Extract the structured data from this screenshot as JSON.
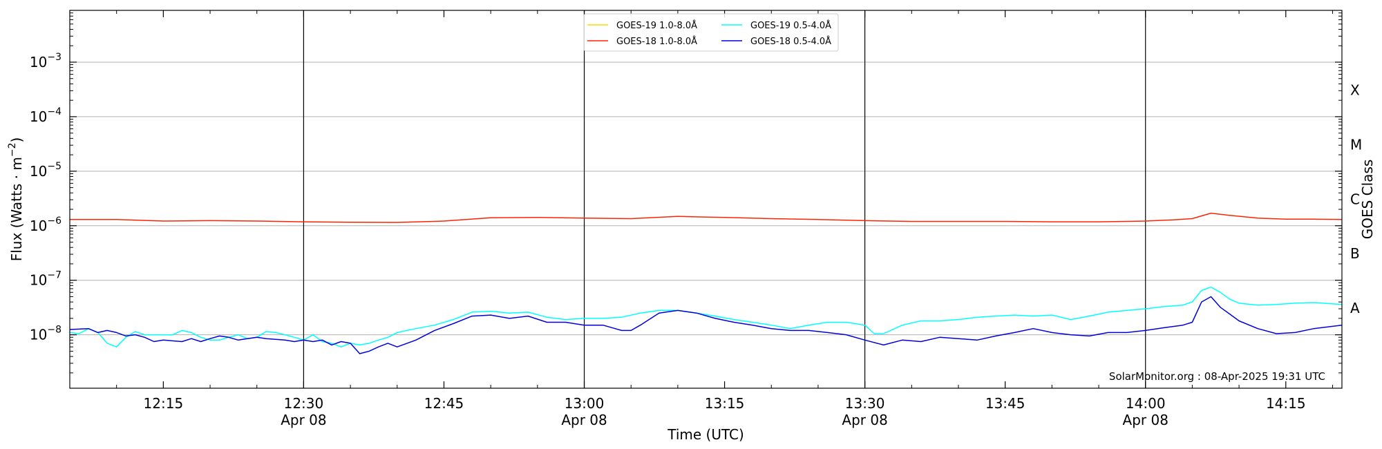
{
  "chart_data": {
    "type": "line",
    "ylabel": "Flux (Watts · m⁻²)",
    "xlabel": "Time (UTC)",
    "right_label": "GOES Class",
    "xlim": [
      "12:05",
      "14:21"
    ],
    "ylim_log10": [
      -8.98,
      -2.05
    ],
    "yscale": "log",
    "x_ticks": [
      {
        "time": "12:15",
        "label": "12:15",
        "date": ""
      },
      {
        "time": "12:30",
        "label": "12:30",
        "date": "Apr 08"
      },
      {
        "time": "12:45",
        "label": "12:45",
        "date": ""
      },
      {
        "time": "13:00",
        "label": "13:00",
        "date": "Apr 08"
      },
      {
        "time": "13:15",
        "label": "13:15",
        "date": ""
      },
      {
        "time": "13:30",
        "label": "13:30",
        "date": "Apr 08"
      },
      {
        "time": "13:45",
        "label": "13:45",
        "date": ""
      },
      {
        "time": "14:00",
        "label": "14:00",
        "date": "Apr 08"
      },
      {
        "time": "14:15",
        "label": "14:15",
        "date": ""
      }
    ],
    "y_ticks": [
      {
        "exp": -8,
        "base": "10",
        "power": "−8"
      },
      {
        "exp": -7,
        "base": "10",
        "power": "−7"
      },
      {
        "exp": -6,
        "base": "10",
        "power": "−6"
      },
      {
        "exp": -5,
        "base": "10",
        "power": "−5"
      },
      {
        "exp": -4,
        "base": "10",
        "power": "−4"
      },
      {
        "exp": -3,
        "base": "10",
        "power": "−3"
      }
    ],
    "date_lines": [
      "12:30",
      "13:00",
      "13:30",
      "14:00"
    ],
    "goes_classes": [
      {
        "label": "A",
        "exp": -7.5
      },
      {
        "label": "B",
        "exp": -6.5
      },
      {
        "label": "C",
        "exp": -5.5
      },
      {
        "label": "M",
        "exp": -4.5
      },
      {
        "label": "X",
        "exp": -3.5
      }
    ],
    "grid": "horizontal",
    "legend_position": "top-center",
    "credit": "SolarMonitor.org : 08-Apr-2025 19:31 UTC",
    "series": [
      {
        "name": "GOES-19 1.0-8.0Å",
        "color": "#ffd700",
        "points": []
      },
      {
        "name": "GOES-18 1.0-8.0Å",
        "color": "#ff2200",
        "points": [
          [
            "12:05",
            1.3e-06
          ],
          [
            "12:10",
            1.3e-06
          ],
          [
            "12:15",
            1.22e-06
          ],
          [
            "12:20",
            1.24e-06
          ],
          [
            "12:25",
            1.22e-06
          ],
          [
            "12:30",
            1.18e-06
          ],
          [
            "12:35",
            1.16e-06
          ],
          [
            "12:40",
            1.15e-06
          ],
          [
            "12:45",
            1.22e-06
          ],
          [
            "12:50",
            1.4e-06
          ],
          [
            "12:55",
            1.42e-06
          ],
          [
            "13:00",
            1.38e-06
          ],
          [
            "13:05",
            1.35e-06
          ],
          [
            "13:10",
            1.48e-06
          ],
          [
            "13:15",
            1.42e-06
          ],
          [
            "13:20",
            1.35e-06
          ],
          [
            "13:25",
            1.3e-06
          ],
          [
            "13:30",
            1.24e-06
          ],
          [
            "13:35",
            1.2e-06
          ],
          [
            "13:40",
            1.2e-06
          ],
          [
            "13:45",
            1.2e-06
          ],
          [
            "13:50",
            1.18e-06
          ],
          [
            "13:55",
            1.18e-06
          ],
          [
            "14:00",
            1.22e-06
          ],
          [
            "14:03",
            1.28e-06
          ],
          [
            "14:05",
            1.35e-06
          ],
          [
            "14:07",
            1.7e-06
          ],
          [
            "14:09",
            1.55e-06
          ],
          [
            "14:12",
            1.38e-06
          ],
          [
            "14:15",
            1.32e-06
          ],
          [
            "14:18",
            1.32e-06
          ],
          [
            "14:21",
            1.3e-06
          ]
        ]
      },
      {
        "name": "GOES-19 0.5-4.0Å",
        "color": "#00ffff",
        "points": [
          [
            "12:05",
            1.1e-08
          ],
          [
            "12:06",
            1.05e-08
          ],
          [
            "12:07",
            1.3e-08
          ],
          [
            "12:08",
            1.1e-08
          ],
          [
            "12:09",
            7e-09
          ],
          [
            "12:10",
            6e-09
          ],
          [
            "12:11",
            9e-09
          ],
          [
            "12:12",
            1.15e-08
          ],
          [
            "12:13",
            1e-08
          ],
          [
            "12:15",
            1e-08
          ],
          [
            "12:16",
            1e-08
          ],
          [
            "12:17",
            1.2e-08
          ],
          [
            "12:18",
            1.1e-08
          ],
          [
            "12:19",
            9e-09
          ],
          [
            "12:20",
            8e-09
          ],
          [
            "12:21",
            8e-09
          ],
          [
            "12:22",
            9e-09
          ],
          [
            "12:23",
            1e-08
          ],
          [
            "12:24",
            8.5e-09
          ],
          [
            "12:25",
            9e-09
          ],
          [
            "12:26",
            1.15e-08
          ],
          [
            "12:27",
            1.1e-08
          ],
          [
            "12:28",
            1e-08
          ],
          [
            "12:29",
            9e-09
          ],
          [
            "12:30",
            8e-09
          ],
          [
            "12:31",
            1e-08
          ],
          [
            "12:32",
            7.5e-09
          ],
          [
            "12:33",
            7e-09
          ],
          [
            "12:34",
            6e-09
          ],
          [
            "12:35",
            7e-09
          ],
          [
            "12:36",
            6.5e-09
          ],
          [
            "12:37",
            7e-09
          ],
          [
            "12:38",
            8e-09
          ],
          [
            "12:39",
            9e-09
          ],
          [
            "12:40",
            1.1e-08
          ],
          [
            "12:42",
            1.3e-08
          ],
          [
            "12:44",
            1.5e-08
          ],
          [
            "12:46",
            1.9e-08
          ],
          [
            "12:48",
            2.6e-08
          ],
          [
            "12:50",
            2.7e-08
          ],
          [
            "12:52",
            2.5e-08
          ],
          [
            "12:54",
            2.6e-08
          ],
          [
            "12:56",
            2.1e-08
          ],
          [
            "12:58",
            1.9e-08
          ],
          [
            "13:00",
            2e-08
          ],
          [
            "13:02",
            2e-08
          ],
          [
            "13:04",
            2.1e-08
          ],
          [
            "13:06",
            2.5e-08
          ],
          [
            "13:08",
            2.8e-08
          ],
          [
            "13:10",
            2.8e-08
          ],
          [
            "13:12",
            2.5e-08
          ],
          [
            "13:14",
            2.2e-08
          ],
          [
            "13:16",
            1.9e-08
          ],
          [
            "13:18",
            1.7e-08
          ],
          [
            "13:20",
            1.5e-08
          ],
          [
            "13:22",
            1.3e-08
          ],
          [
            "13:24",
            1.5e-08
          ],
          [
            "13:26",
            1.7e-08
          ],
          [
            "13:28",
            1.7e-08
          ],
          [
            "13:30",
            1.5e-08
          ],
          [
            "13:31",
            1.05e-08
          ],
          [
            "13:32",
            1.05e-08
          ],
          [
            "13:34",
            1.5e-08
          ],
          [
            "13:36",
            1.8e-08
          ],
          [
            "13:38",
            1.8e-08
          ],
          [
            "13:40",
            1.9e-08
          ],
          [
            "13:42",
            2.1e-08
          ],
          [
            "13:44",
            2.2e-08
          ],
          [
            "13:46",
            2.3e-08
          ],
          [
            "13:48",
            2.2e-08
          ],
          [
            "13:50",
            2.3e-08
          ],
          [
            "13:52",
            1.9e-08
          ],
          [
            "13:54",
            2.2e-08
          ],
          [
            "13:56",
            2.6e-08
          ],
          [
            "13:58",
            2.8e-08
          ],
          [
            "14:00",
            3e-08
          ],
          [
            "14:02",
            3.3e-08
          ],
          [
            "14:04",
            3.5e-08
          ],
          [
            "14:05",
            4e-08
          ],
          [
            "14:06",
            6.5e-08
          ],
          [
            "14:07",
            7.5e-08
          ],
          [
            "14:08",
            6e-08
          ],
          [
            "14:09",
            4.5e-08
          ],
          [
            "14:10",
            3.8e-08
          ],
          [
            "14:12",
            3.5e-08
          ],
          [
            "14:14",
            3.6e-08
          ],
          [
            "14:16",
            3.8e-08
          ],
          [
            "14:18",
            3.9e-08
          ],
          [
            "14:21",
            3.6e-08
          ]
        ]
      },
      {
        "name": "GOES-18 0.5-4.0Å",
        "color": "#0000dd",
        "points": [
          [
            "12:05",
            1.25e-08
          ],
          [
            "12:07",
            1.3e-08
          ],
          [
            "12:08",
            1.1e-08
          ],
          [
            "12:09",
            1.2e-08
          ],
          [
            "12:10",
            1.1e-08
          ],
          [
            "12:11",
            9.5e-09
          ],
          [
            "12:12",
            1e-08
          ],
          [
            "12:13",
            9e-09
          ],
          [
            "12:14",
            7.5e-09
          ],
          [
            "12:15",
            8e-09
          ],
          [
            "12:17",
            7.5e-09
          ],
          [
            "12:18",
            8.5e-09
          ],
          [
            "12:19",
            7.5e-09
          ],
          [
            "12:20",
            8.5e-09
          ],
          [
            "12:21",
            9.5e-09
          ],
          [
            "12:22",
            9e-09
          ],
          [
            "12:23",
            8e-09
          ],
          [
            "12:24",
            8.5e-09
          ],
          [
            "12:25",
            9e-09
          ],
          [
            "12:26",
            8.5e-09
          ],
          [
            "12:28",
            8e-09
          ],
          [
            "12:29",
            7.5e-09
          ],
          [
            "12:30",
            8e-09
          ],
          [
            "12:31",
            7.5e-09
          ],
          [
            "12:32",
            8e-09
          ],
          [
            "12:33",
            6.5e-09
          ],
          [
            "12:34",
            7.5e-09
          ],
          [
            "12:35",
            7e-09
          ],
          [
            "12:36",
            4.5e-09
          ],
          [
            "12:37",
            5e-09
          ],
          [
            "12:38",
            6e-09
          ],
          [
            "12:39",
            7e-09
          ],
          [
            "12:40",
            6e-09
          ],
          [
            "12:42",
            8e-09
          ],
          [
            "12:44",
            1.2e-08
          ],
          [
            "12:46",
            1.6e-08
          ],
          [
            "12:48",
            2.2e-08
          ],
          [
            "12:50",
            2.3e-08
          ],
          [
            "12:52",
            2e-08
          ],
          [
            "12:54",
            2.2e-08
          ],
          [
            "12:56",
            1.7e-08
          ],
          [
            "12:58",
            1.7e-08
          ],
          [
            "13:00",
            1.5e-08
          ],
          [
            "13:02",
            1.5e-08
          ],
          [
            "13:04",
            1.2e-08
          ],
          [
            "13:05",
            1.2e-08
          ],
          [
            "13:06",
            1.5e-08
          ],
          [
            "13:08",
            2.5e-08
          ],
          [
            "13:10",
            2.8e-08
          ],
          [
            "13:12",
            2.5e-08
          ],
          [
            "13:14",
            2e-08
          ],
          [
            "13:16",
            1.7e-08
          ],
          [
            "13:18",
            1.5e-08
          ],
          [
            "13:20",
            1.3e-08
          ],
          [
            "13:22",
            1.2e-08
          ],
          [
            "13:24",
            1.2e-08
          ],
          [
            "13:26",
            1.1e-08
          ],
          [
            "13:28",
            1e-08
          ],
          [
            "13:30",
            8e-09
          ],
          [
            "13:32",
            6.5e-09
          ],
          [
            "13:34",
            8e-09
          ],
          [
            "13:36",
            7.5e-09
          ],
          [
            "13:38",
            9e-09
          ],
          [
            "13:40",
            8.5e-09
          ],
          [
            "13:42",
            8e-09
          ],
          [
            "13:44",
            9.5e-09
          ],
          [
            "13:46",
            1.1e-08
          ],
          [
            "13:48",
            1.3e-08
          ],
          [
            "13:50",
            1.1e-08
          ],
          [
            "13:52",
            1e-08
          ],
          [
            "13:54",
            9.5e-09
          ],
          [
            "13:56",
            1.1e-08
          ],
          [
            "13:58",
            1.1e-08
          ],
          [
            "14:00",
            1.2e-08
          ],
          [
            "14:02",
            1.35e-08
          ],
          [
            "14:04",
            1.5e-08
          ],
          [
            "14:05",
            1.7e-08
          ],
          [
            "14:06",
            4e-08
          ],
          [
            "14:07",
            5e-08
          ],
          [
            "14:08",
            3.2e-08
          ],
          [
            "14:09",
            2.4e-08
          ],
          [
            "14:10",
            1.8e-08
          ],
          [
            "14:12",
            1.3e-08
          ],
          [
            "14:14",
            1.05e-08
          ],
          [
            "14:16",
            1.1e-08
          ],
          [
            "14:18",
            1.3e-08
          ],
          [
            "14:21",
            1.5e-08
          ]
        ]
      }
    ]
  }
}
